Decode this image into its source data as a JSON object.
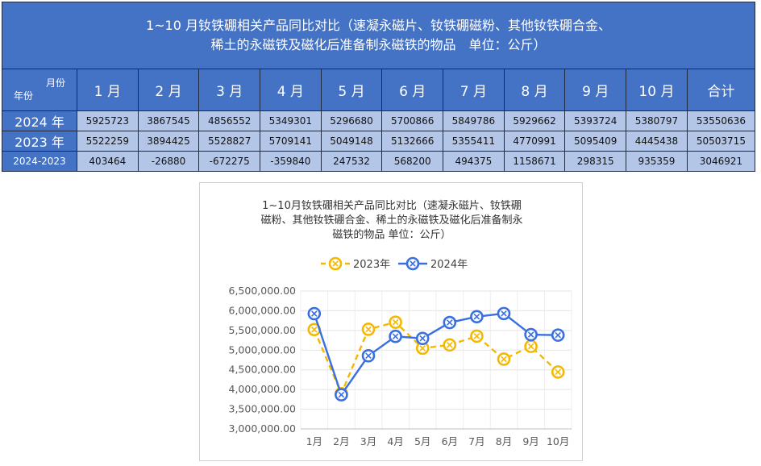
{
  "table": {
    "title_line1": "1~10 月钕铁硼相关产品同比对比（速凝永磁片、钕铁硼磁粉、其他钕铁硼合金、",
    "title_line2": "稀土的永磁铁及磁化后准备制永磁铁的物品　单位：公斤）",
    "corner_top": "月份",
    "corner_bottom": "年份",
    "headers": [
      "1 月",
      "2 月",
      "3 月",
      "4 月",
      "5 月",
      "6 月",
      "7 月",
      "8 月",
      "9 月",
      "10 月",
      "合计"
    ],
    "rows": [
      {
        "label": "2024 年",
        "values": [
          "5925723",
          "3867545",
          "4856552",
          "5349301",
          "5296680",
          "5700866",
          "5849786",
          "5929662",
          "5393724",
          "5380797",
          "53550636"
        ]
      },
      {
        "label": "2023 年",
        "values": [
          "5522259",
          "3894425",
          "5528827",
          "5709141",
          "5049148",
          "5132666",
          "5355411",
          "4770991",
          "5095409",
          "4445438",
          "50503715"
        ]
      },
      {
        "label": "2024-2023",
        "values": [
          "403464",
          "-26880",
          "-672275",
          "-359840",
          "247532",
          "568200",
          "494375",
          "1158671",
          "298315",
          "935359",
          "3046921"
        ]
      }
    ]
  },
  "chart_data": {
    "type": "line",
    "title_lines": [
      "1~10月钕铁硼相关产品同比对比（速凝永磁片、钕铁硼",
      "磁粉、其他钕铁硼合金、稀土的永磁铁及磁化后准备制永",
      "磁铁的物品  单位：公斤）"
    ],
    "categories": [
      "1月",
      "2月",
      "3月",
      "4月",
      "5月",
      "6月",
      "7月",
      "8月",
      "9月",
      "10月"
    ],
    "series": [
      {
        "name": "2023年",
        "color": "#f5b800",
        "dashed": true,
        "values": [
          5522259,
          3894425,
          5528827,
          5709141,
          5049148,
          5132666,
          5355411,
          4770991,
          5095409,
          4445438
        ]
      },
      {
        "name": "2024年",
        "color": "#3a6fe0",
        "dashed": false,
        "values": [
          5925723,
          3867545,
          4856552,
          5349301,
          5296680,
          5700866,
          5849786,
          5929662,
          5393724,
          5380797
        ]
      }
    ],
    "ylim": [
      3000000,
      6500000
    ],
    "ytick_step": 500000,
    "ytick_labels": [
      "3,000,000.00",
      "3,500,000.00",
      "4,000,000.00",
      "4,500,000.00",
      "5,000,000.00",
      "5,500,000.00",
      "6,000,000.00",
      "6,500,000.00"
    ],
    "legend_position": "top",
    "grid": true
  }
}
